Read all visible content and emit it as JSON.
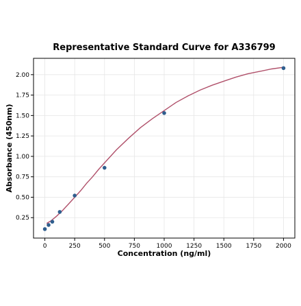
{
  "chart_data": {
    "type": "scatter",
    "title": "Representative Standard Curve for A336799",
    "xlabel": "Concentration (ng/ml)",
    "ylabel": "Absorbance (450nm)",
    "xlim": [
      -95,
      2095
    ],
    "ylim": [
      0.0,
      2.2
    ],
    "xticks": [
      0,
      250,
      500,
      750,
      1000,
      1250,
      1500,
      1750,
      2000
    ],
    "yticks": [
      0.25,
      0.5,
      0.75,
      1.0,
      1.25,
      1.5,
      1.75,
      2.0
    ],
    "grid": true,
    "points": {
      "x": [
        0,
        31.25,
        62.5,
        125,
        250,
        500,
        1000,
        2000
      ],
      "y": [
        0.11,
        0.16,
        0.2,
        0.32,
        0.52,
        0.86,
        1.53,
        2.08
      ]
    },
    "fit_curve": {
      "x": [
        15,
        50,
        100,
        150,
        200,
        250,
        300,
        350,
        400,
        450,
        500,
        600,
        700,
        800,
        900,
        1000,
        1100,
        1200,
        1300,
        1400,
        1500,
        1600,
        1700,
        1800,
        1900,
        2000
      ],
      "y": [
        0.18,
        0.21,
        0.27,
        0.34,
        0.42,
        0.5,
        0.58,
        0.67,
        0.75,
        0.84,
        0.92,
        1.08,
        1.22,
        1.35,
        1.46,
        1.56,
        1.66,
        1.74,
        1.81,
        1.87,
        1.92,
        1.97,
        2.01,
        2.04,
        2.07,
        2.09
      ]
    },
    "colors": {
      "points": "#2f5e8e",
      "curve": "#b0506a",
      "grid": "#e6e6e6"
    }
  }
}
